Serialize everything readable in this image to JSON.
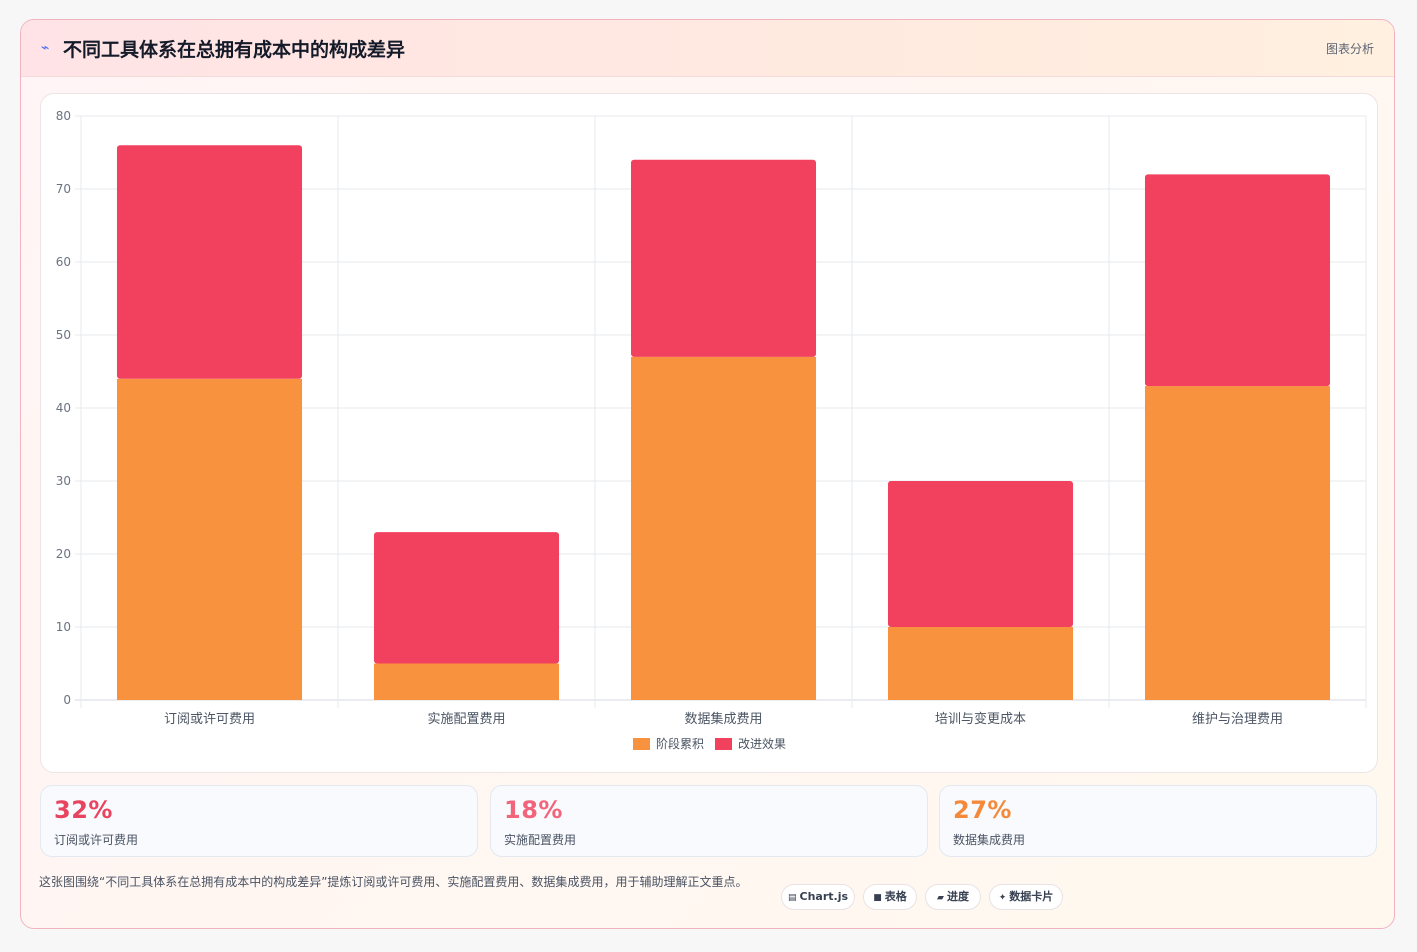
{
  "header": {
    "icon": "chart-line-icon",
    "title": "不同工具体系在总拥有成本中的构成差异",
    "tag": "图表分析"
  },
  "chart_data": {
    "type": "bar",
    "stacked": true,
    "categories": [
      "订阅或许可费用",
      "实施配置费用",
      "数据集成费用",
      "培训与变更成本",
      "维护与治理费用"
    ],
    "series": [
      {
        "name": "阶段累积",
        "color": "#f9923e",
        "values": [
          44,
          5,
          47,
          10,
          43
        ]
      },
      {
        "name": "改进效果",
        "color": "#f2405f",
        "values": [
          32,
          18,
          27,
          20,
          29
        ]
      }
    ],
    "ylim": [
      0,
      80
    ],
    "yticks": [
      0,
      10,
      20,
      30,
      40,
      50,
      60,
      70,
      80
    ],
    "grid": true,
    "legend": "bottom",
    "xlabel": "",
    "ylabel": ""
  },
  "stats": [
    {
      "value": "32%",
      "label": "订阅或许可费用",
      "color": "#e8435f"
    },
    {
      "value": "18%",
      "label": "实施配置费用",
      "color": "#f2647c"
    },
    {
      "value": "27%",
      "label": "数据集成费用",
      "color": "#f5893a"
    }
  ],
  "footer": {
    "text": "这张图围绕“不同工具体系在总拥有成本中的构成差异”提炼订阅或许可费用、实施配置费用、数据集成费用，用于辅助理解正文重点。",
    "pills": [
      {
        "icon": "▤",
        "icon_name": "chart-js-icon",
        "label": "Chart.js"
      },
      {
        "icon": "■",
        "icon_name": "table-icon",
        "label": "表格"
      },
      {
        "icon": "▰",
        "icon_name": "progress-icon",
        "label": "进度"
      },
      {
        "icon": "✦",
        "icon_name": "data-card-icon",
        "label": "数据卡片"
      }
    ]
  }
}
